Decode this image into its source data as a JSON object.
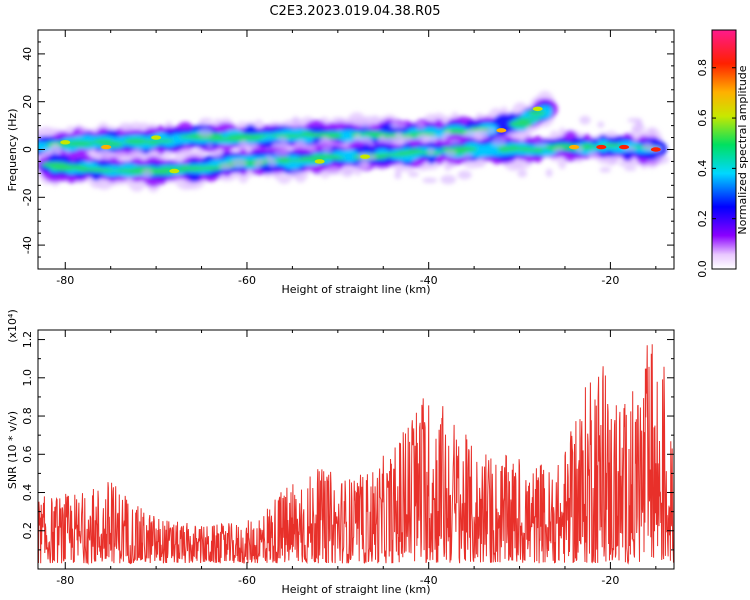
{
  "title": "C2E3.2023.019.04.38.R05",
  "chart_data": [
    {
      "type": "heatmap",
      "xlabel": "Height of straight line (km)",
      "ylabel": "Frequency (Hz)",
      "xlim": [
        -83,
        -13
      ],
      "ylim": [
        -50,
        50
      ],
      "xticks": [
        -80,
        -60,
        -40,
        -20
      ],
      "yticks": [
        -40,
        -20,
        0,
        20,
        40
      ],
      "colorbar": {
        "label": "Normalized spectral amplitude",
        "range": [
          0,
          0.95
        ],
        "ticks": [
          "0.0",
          "0.2",
          "0.4",
          "0.6",
          "0.8"
        ],
        "tick_values": [
          0,
          0.2,
          0.4,
          0.6,
          0.8
        ]
      },
      "bands": [
        {
          "name": "upper",
          "points": [
            [
              -83,
              1
            ],
            [
              -78,
              3
            ],
            [
              -72,
              3
            ],
            [
              -66,
              5
            ],
            [
              -60,
              5
            ],
            [
              -50,
              6
            ],
            [
              -42,
              6
            ],
            [
              -38,
              7
            ],
            [
              -34,
              8
            ],
            [
              -30,
              11
            ],
            [
              -27,
              17
            ]
          ]
        },
        {
          "name": "lower",
          "points": [
            [
              -82,
              -7
            ],
            [
              -76,
              -8
            ],
            [
              -70,
              -9
            ],
            [
              -65,
              -8
            ],
            [
              -60,
              -5
            ],
            [
              -55,
              -5
            ],
            [
              -50,
              -3
            ],
            [
              -45,
              -2
            ],
            [
              -40,
              -1
            ],
            [
              -35,
              0
            ],
            [
              -30,
              0
            ],
            [
              -25,
              1
            ],
            [
              -20,
              1
            ],
            [
              -15,
              0
            ]
          ]
        }
      ]
    },
    {
      "type": "line",
      "xlabel": "Height of straight line (km)",
      "ylabel": "SNR (10 * v/v)",
      "scale_label": "(x10⁴)",
      "xlim": [
        -83,
        -13
      ],
      "ylim": [
        0,
        1.25
      ],
      "xticks": [
        -80,
        -60,
        -40,
        -20
      ],
      "yticks": [
        0.2,
        0.4,
        0.6,
        0.8,
        1.0,
        1.2
      ],
      "ytick_labels": [
        "0.2",
        "0.4",
        "0.6",
        "0.8",
        "1.0",
        "1.2"
      ],
      "color": "#e8302a",
      "envelope": [
        [
          -83,
          0.35
        ],
        [
          -78,
          0.38
        ],
        [
          -75,
          0.45
        ],
        [
          -72,
          0.3
        ],
        [
          -68,
          0.22
        ],
        [
          -64,
          0.2
        ],
        [
          -60,
          0.22
        ],
        [
          -56,
          0.4
        ],
        [
          -52,
          0.5
        ],
        [
          -48,
          0.45
        ],
        [
          -44,
          0.6
        ],
        [
          -41,
          0.9
        ],
        [
          -38,
          0.85
        ],
        [
          -35,
          0.6
        ],
        [
          -30,
          0.55
        ],
        [
          -26,
          0.5
        ],
        [
          -23,
          0.85
        ],
        [
          -22,
          1.2
        ],
        [
          -20,
          0.9
        ],
        [
          -18,
          0.85
        ],
        [
          -16,
          1.15
        ],
        [
          -14,
          1.1
        ],
        [
          -13,
          0.5
        ]
      ]
    }
  ]
}
